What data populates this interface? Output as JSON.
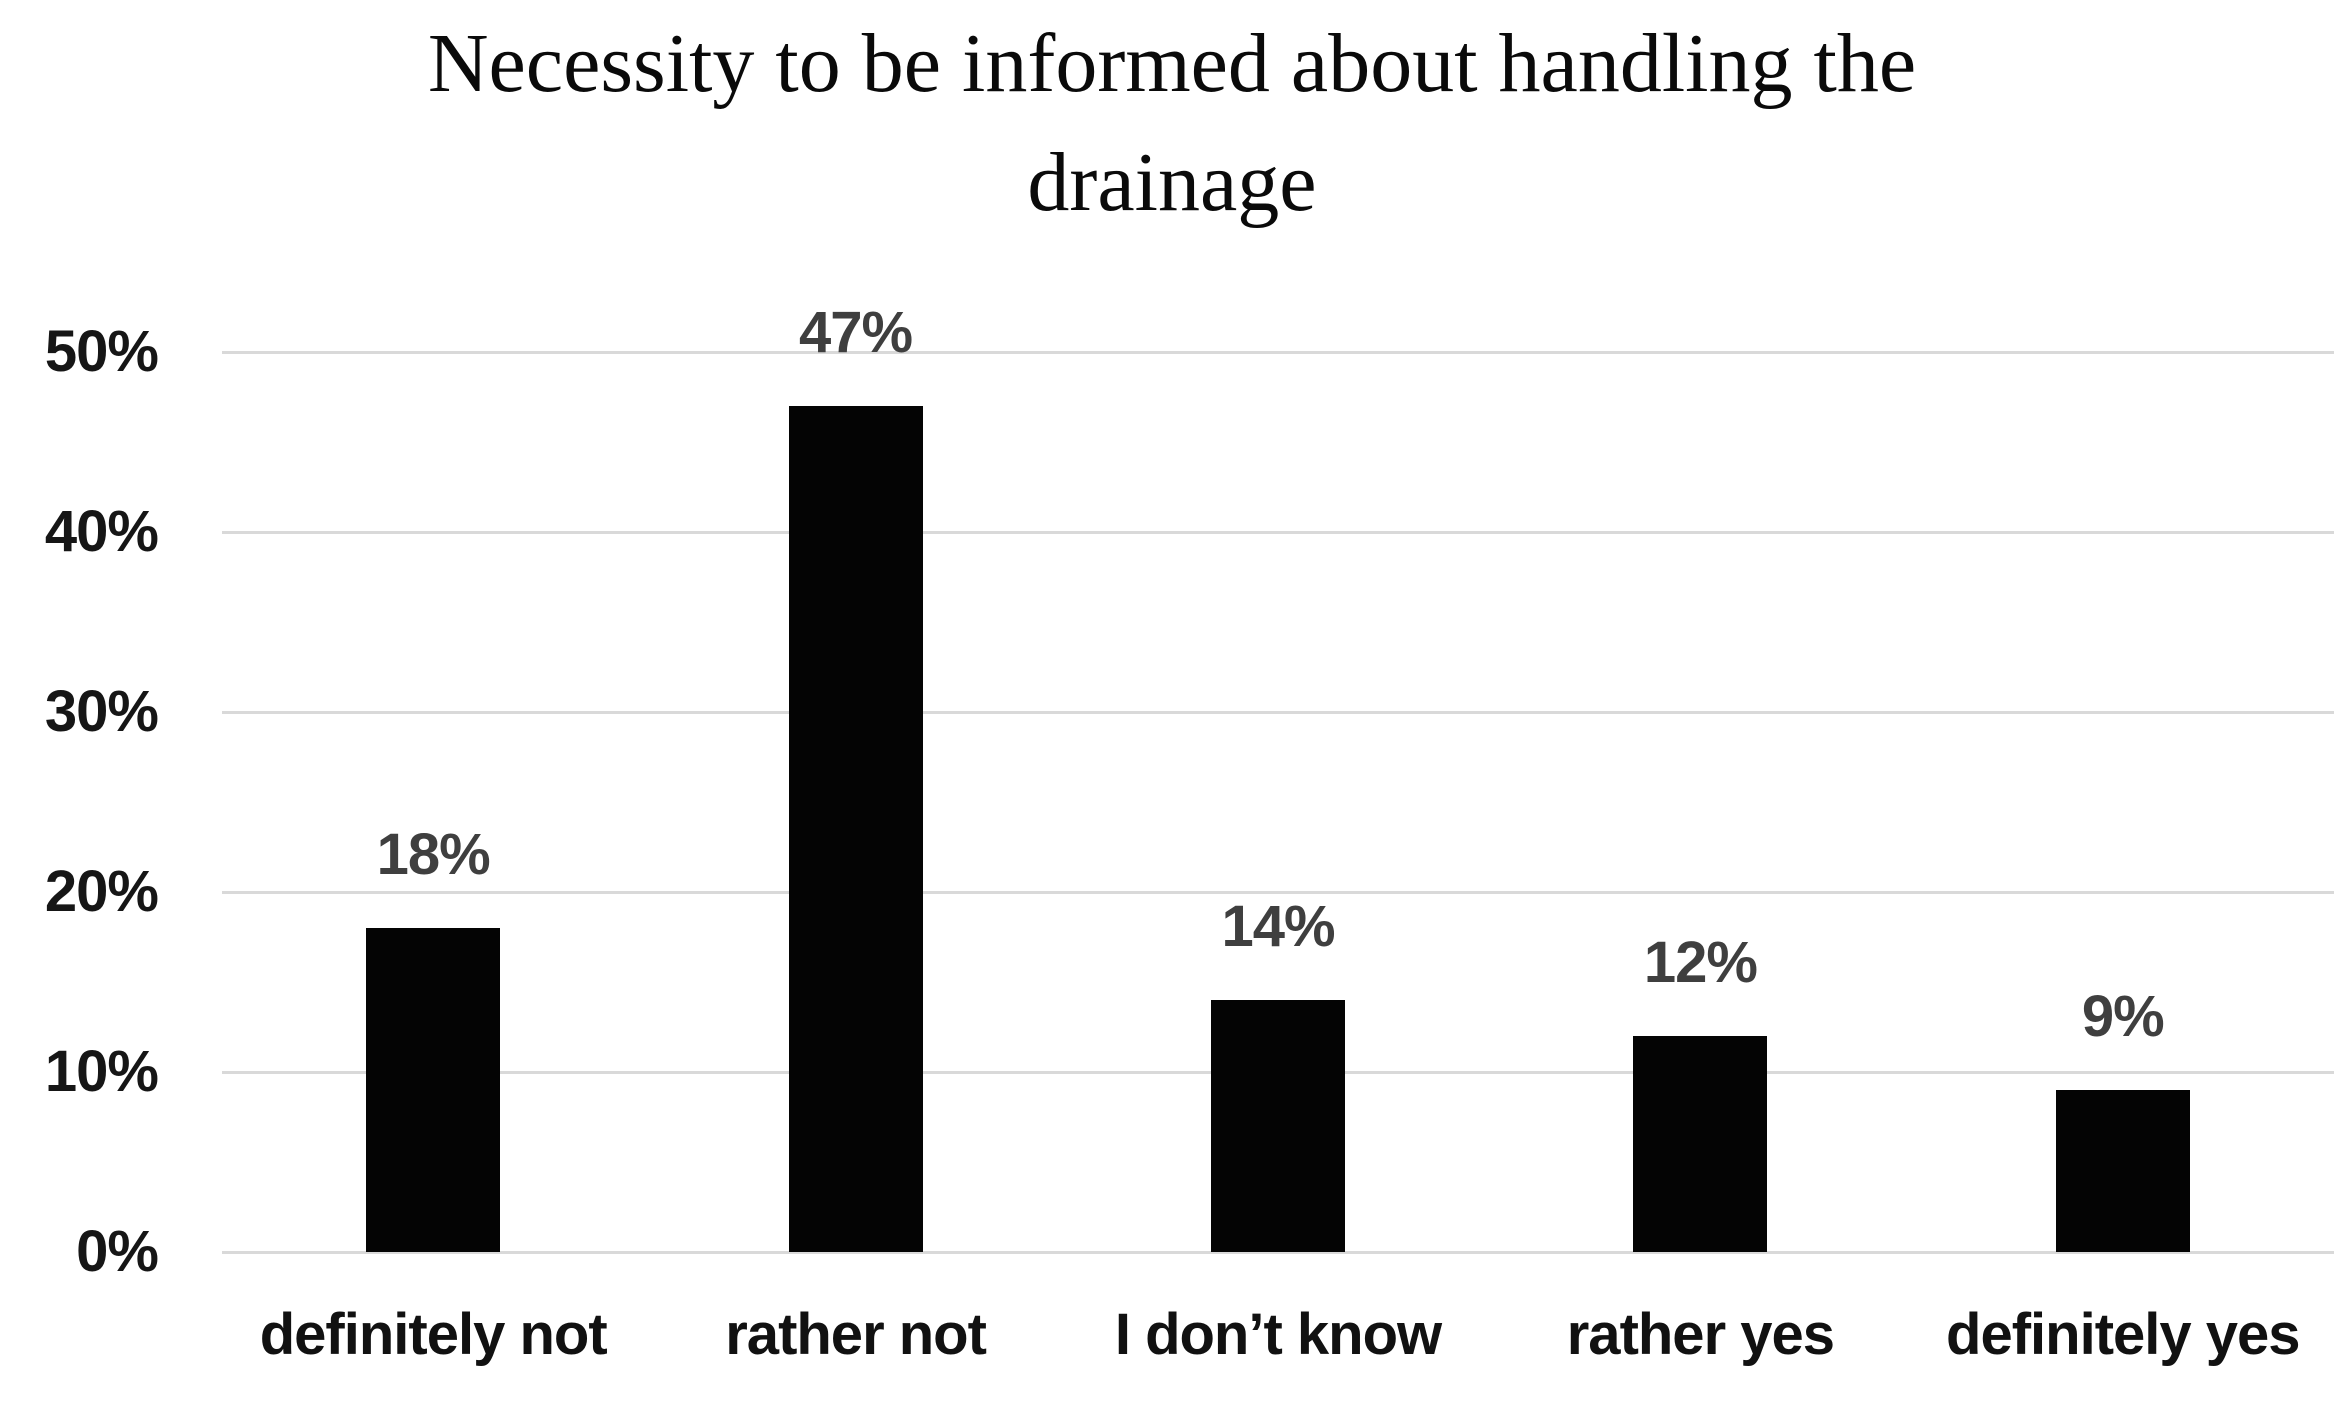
{
  "chart_data": {
    "type": "bar",
    "title": "Necessity to be informed about handling the drainage",
    "title_lines": [
      "Necessity to be informed about handling the",
      "drainage"
    ],
    "categories": [
      "definitely not",
      "rather not",
      "I don’t know",
      "rather yes",
      "definitely yes"
    ],
    "values": [
      18,
      47,
      14,
      12,
      9
    ],
    "data_labels": [
      "18%",
      "47%",
      "14%",
      "12%",
      "9%"
    ],
    "y_axis": {
      "min": 0,
      "max": 50,
      "tick_step": 10,
      "tick_labels": [
        "0%",
        "10%",
        "20%",
        "30%",
        "40%",
        "50%"
      ]
    },
    "grid": true,
    "legend": false,
    "bar_color": "#040404",
    "gridline_color": "#d9d9d9",
    "data_label_color": "#3f3f3f",
    "axis_text_color": "#161616",
    "background": "#ffffff"
  }
}
